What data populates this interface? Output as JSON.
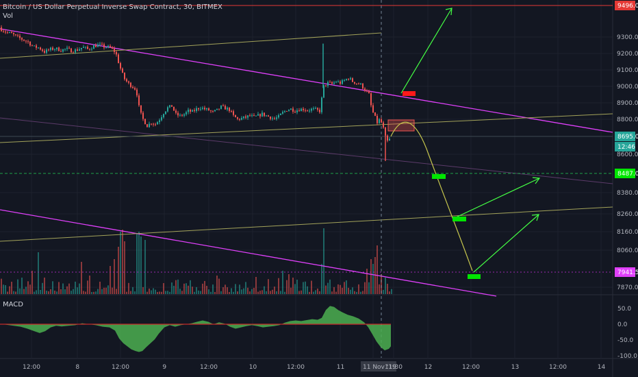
{
  "chart": {
    "title": "Bitcoin / US Dollar Perpetual Inverse Swap Contract, 30, BITMEX",
    "volume_label": "Vol",
    "macd_label": "MACD"
  },
  "price_axis": {
    "ticks": [
      "9300.0",
      "9200.0",
      "9100.0",
      "9000.0",
      "8900.0",
      "8800.0",
      "8600.0",
      "8380.0",
      "8260.0",
      "8160.0",
      "8060.0",
      "7870.0"
    ],
    "badges": [
      {
        "text": "9496.0",
        "color": "#e53935"
      },
      {
        "text": "8695.0",
        "color": "#26a69a"
      },
      {
        "text": "12:46",
        "color": "#26a69a"
      },
      {
        "text": "8487.0",
        "color": "#00e600"
      },
      {
        "text": "7941.5",
        "color": "#e040fb"
      }
    ]
  },
  "macd_axis": {
    "ticks": [
      "50.0",
      "0.0",
      "-50.0",
      "-100.0"
    ]
  },
  "time_axis": {
    "ticks": [
      "12:00",
      "8",
      "12:00",
      "9",
      "12:00",
      "10",
      "12:00",
      "11",
      "11 Nov '19",
      "11:30",
      "12",
      "12:00",
      "13",
      "12:00",
      "14"
    ]
  },
  "colors": {
    "background": "#131722",
    "up": "#26a69a",
    "down": "#ef5350",
    "trendline": "#e040fb",
    "channel": "#a3a35a",
    "arrow": "#44ff44",
    "green_box": "#00e600",
    "red_box": "#ff1a1a",
    "macd": "#4caf50",
    "resistance": "#e53935",
    "support": "#1fa34a"
  },
  "chart_data": {
    "type": "candlestick",
    "title": "Bitcoin / US Dollar Perpetual Inverse Swap Contract, 30, BITMEX",
    "ylim": [
      7840,
      9520
    ],
    "close_path": [
      [
        0,
        9350
      ],
      [
        8,
        9330
      ],
      [
        16,
        9320
      ],
      [
        24,
        9300
      ],
      [
        32,
        9285
      ],
      [
        40,
        9270
      ],
      [
        48,
        9240
      ],
      [
        56,
        9235
      ],
      [
        64,
        9210
      ],
      [
        72,
        9225
      ],
      [
        80,
        9230
      ],
      [
        88,
        9220
      ],
      [
        96,
        9228
      ],
      [
        104,
        9215
      ],
      [
        112,
        9222
      ],
      [
        120,
        9238
      ],
      [
        128,
        9225
      ],
      [
        136,
        9245
      ],
      [
        144,
        9252
      ],
      [
        152,
        9240
      ],
      [
        160,
        9236
      ],
      [
        168,
        9205
      ],
      [
        174,
        9120
      ],
      [
        180,
        9050
      ],
      [
        186,
        9020
      ],
      [
        192,
        9000
      ],
      [
        198,
        8980
      ],
      [
        203,
        8850
      ],
      [
        208,
        8800
      ],
      [
        214,
        8760
      ],
      [
        220,
        8780
      ],
      [
        226,
        8770
      ],
      [
        232,
        8800
      ],
      [
        238,
        8840
      ],
      [
        244,
        8870
      ],
      [
        250,
        8880
      ],
      [
        256,
        8830
      ],
      [
        262,
        8820
      ],
      [
        268,
        8830
      ],
      [
        274,
        8850
      ],
      [
        280,
        8845
      ],
      [
        286,
        8862
      ],
      [
        292,
        8872
      ],
      [
        298,
        8862
      ],
      [
        304,
        8855
      ],
      [
        310,
        8842
      ],
      [
        316,
        8855
      ],
      [
        322,
        8875
      ],
      [
        328,
        8868
      ],
      [
        334,
        8858
      ],
      [
        340,
        8820
      ],
      [
        346,
        8800
      ],
      [
        352,
        8805
      ],
      [
        358,
        8812
      ],
      [
        364,
        8822
      ],
      [
        370,
        8812
      ],
      [
        376,
        8822
      ],
      [
        382,
        8832
      ],
      [
        388,
        8822
      ],
      [
        394,
        8812
      ],
      [
        400,
        8802
      ],
      [
        406,
        8815
      ],
      [
        412,
        8840
      ],
      [
        418,
        8858
      ],
      [
        424,
        8862
      ],
      [
        430,
        8852
      ],
      [
        436,
        8860
      ],
      [
        442,
        8862
      ],
      [
        448,
        8855
      ],
      [
        454,
        8860
      ],
      [
        460,
        8858
      ],
      [
        466,
        8850
      ],
      [
        472,
        9000
      ],
      [
        478,
        9020
      ],
      [
        484,
        9015
      ],
      [
        490,
        9030
      ],
      [
        496,
        9020
      ],
      [
        502,
        9035
      ],
      [
        508,
        9052
      ],
      [
        514,
        9030
      ],
      [
        520,
        9020
      ],
      [
        526,
        9010
      ],
      [
        532,
        8980
      ],
      [
        538,
        8950
      ],
      [
        542,
        8860
      ],
      [
        546,
        8820
      ],
      [
        550,
        8780
      ],
      [
        554,
        8800
      ],
      [
        558,
        8760
      ],
      [
        562,
        8690
      ],
      [
        566,
        8660
      ],
      [
        570,
        8695
      ]
    ],
    "macd_path": [
      [
        0,
        1
      ],
      [
        10,
        -2
      ],
      [
        20,
        -5
      ],
      [
        30,
        -8
      ],
      [
        40,
        -14
      ],
      [
        50,
        -22
      ],
      [
        58,
        -28
      ],
      [
        66,
        -22
      ],
      [
        74,
        -10
      ],
      [
        82,
        -5
      ],
      [
        90,
        -7
      ],
      [
        100,
        -5
      ],
      [
        110,
        -3
      ],
      [
        120,
        3
      ],
      [
        130,
        0
      ],
      [
        140,
        -3
      ],
      [
        150,
        -8
      ],
      [
        160,
        -10
      ],
      [
        168,
        -20
      ],
      [
        174,
        -45
      ],
      [
        180,
        -60
      ],
      [
        186,
        -70
      ],
      [
        192,
        -80
      ],
      [
        198,
        -85
      ],
      [
        203,
        -88
      ],
      [
        208,
        -85
      ],
      [
        214,
        -72
      ],
      [
        220,
        -60
      ],
      [
        226,
        -48
      ],
      [
        232,
        -30
      ],
      [
        240,
        -10
      ],
      [
        248,
        -3
      ],
      [
        256,
        -8
      ],
      [
        264,
        -3
      ],
      [
        272,
        0
      ],
      [
        280,
        3
      ],
      [
        288,
        8
      ],
      [
        296,
        12
      ],
      [
        304,
        8
      ],
      [
        312,
        0
      ],
      [
        320,
        6
      ],
      [
        328,
        2
      ],
      [
        336,
        -8
      ],
      [
        344,
        -14
      ],
      [
        352,
        -10
      ],
      [
        360,
        -6
      ],
      [
        368,
        -3
      ],
      [
        376,
        -6
      ],
      [
        384,
        -10
      ],
      [
        392,
        -8
      ],
      [
        400,
        -6
      ],
      [
        408,
        -3
      ],
      [
        416,
        5
      ],
      [
        424,
        10
      ],
      [
        432,
        12
      ],
      [
        440,
        10
      ],
      [
        448,
        13
      ],
      [
        456,
        16
      ],
      [
        464,
        14
      ],
      [
        470,
        20
      ],
      [
        476,
        45
      ],
      [
        482,
        58
      ],
      [
        488,
        55
      ],
      [
        494,
        45
      ],
      [
        500,
        38
      ],
      [
        508,
        30
      ],
      [
        516,
        25
      ],
      [
        524,
        18
      ],
      [
        532,
        6
      ],
      [
        538,
        -10
      ],
      [
        544,
        -32
      ],
      [
        550,
        -55
      ],
      [
        556,
        -72
      ],
      [
        562,
        -83
      ],
      [
        568,
        -78
      ],
      [
        571,
        -70
      ]
    ],
    "annotations": [
      "9496.0",
      "8487.0",
      "7941.5"
    ]
  }
}
